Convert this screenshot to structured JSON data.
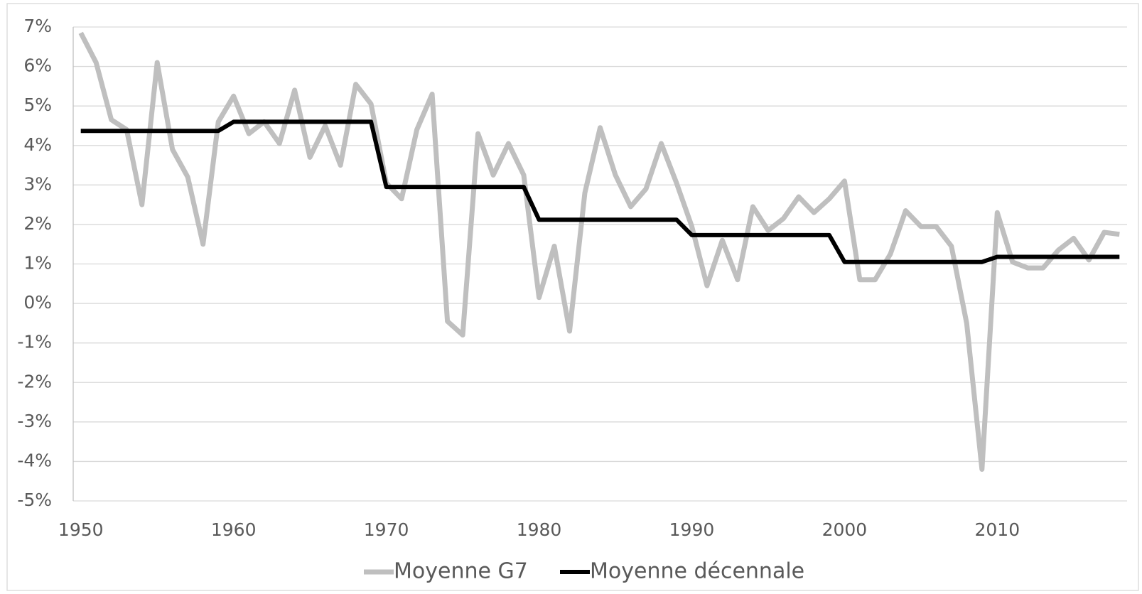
{
  "chart_data": {
    "type": "line",
    "x": [
      1950,
      1951,
      1952,
      1953,
      1954,
      1955,
      1956,
      1957,
      1958,
      1959,
      1960,
      1961,
      1962,
      1963,
      1964,
      1965,
      1966,
      1967,
      1968,
      1969,
      1970,
      1971,
      1972,
      1973,
      1974,
      1975,
      1976,
      1977,
      1978,
      1979,
      1980,
      1981,
      1982,
      1983,
      1984,
      1985,
      1986,
      1987,
      1988,
      1989,
      1990,
      1991,
      1992,
      1993,
      1994,
      1995,
      1996,
      1997,
      1998,
      1999,
      2000,
      2001,
      2002,
      2003,
      2004,
      2005,
      2006,
      2007,
      2008,
      2009,
      2010,
      2011,
      2012,
      2013,
      2014,
      2015,
      2016,
      2017,
      2018
    ],
    "series": [
      {
        "name": "Moyenne G7",
        "color": "#bfbfbf",
        "values": [
          6.85,
          6.1,
          4.65,
          4.4,
          2.5,
          6.1,
          3.9,
          3.2,
          1.5,
          4.6,
          5.25,
          4.3,
          4.6,
          4.05,
          5.4,
          3.7,
          4.5,
          3.5,
          5.55,
          5.05,
          3.05,
          2.65,
          4.4,
          5.3,
          -0.45,
          -0.8,
          4.3,
          3.25,
          4.05,
          3.25,
          0.15,
          1.45,
          -0.7,
          2.8,
          4.45,
          3.25,
          2.45,
          2.9,
          4.05,
          3.05,
          1.95,
          0.45,
          1.6,
          0.6,
          2.45,
          1.85,
          2.15,
          2.7,
          2.3,
          2.65,
          3.1,
          0.6,
          0.6,
          1.25,
          2.35,
          1.95,
          1.95,
          1.45,
          -0.5,
          -4.2,
          2.3,
          1.05,
          0.9,
          0.9,
          1.35,
          1.65,
          1.1,
          1.8,
          1.75
        ]
      },
      {
        "name": "Moyenne décennale",
        "color": "#000000",
        "values": [
          4.37,
          4.37,
          4.37,
          4.37,
          4.37,
          4.37,
          4.37,
          4.37,
          4.37,
          4.37,
          4.6,
          4.6,
          4.6,
          4.6,
          4.6,
          4.6,
          4.6,
          4.6,
          4.6,
          4.6,
          2.95,
          2.95,
          2.95,
          2.95,
          2.95,
          2.95,
          2.95,
          2.95,
          2.95,
          2.95,
          2.12,
          2.12,
          2.12,
          2.12,
          2.12,
          2.12,
          2.12,
          2.12,
          2.12,
          2.12,
          1.73,
          1.73,
          1.73,
          1.73,
          1.73,
          1.73,
          1.73,
          1.73,
          1.73,
          1.73,
          1.05,
          1.05,
          1.05,
          1.05,
          1.05,
          1.05,
          1.05,
          1.05,
          1.05,
          1.05,
          1.18,
          1.18,
          1.18,
          1.18,
          1.18,
          1.18,
          1.18,
          1.18,
          1.18
        ]
      }
    ],
    "xlim": [
      1949.5,
      2018.5
    ],
    "xticks": [
      1950,
      1960,
      1970,
      1980,
      1990,
      2000,
      2010
    ],
    "ylim": [
      -5,
      7
    ],
    "yticks": [
      {
        "value": -5,
        "label": "-5%"
      },
      {
        "value": -4,
        "label": "-4%"
      },
      {
        "value": -3,
        "label": "-3%"
      },
      {
        "value": -2,
        "label": "-2%"
      },
      {
        "value": -1,
        "label": "-1%"
      },
      {
        "value": 0,
        "label": "0%"
      },
      {
        "value": 1,
        "label": "1%"
      },
      {
        "value": 2,
        "label": "2%"
      },
      {
        "value": 3,
        "label": "3%"
      },
      {
        "value": 4,
        "label": "4%"
      },
      {
        "value": 5,
        "label": "5%"
      },
      {
        "value": 6,
        "label": "6%"
      },
      {
        "value": 7,
        "label": "7%"
      }
    ],
    "grid": true,
    "legend": "bottom"
  }
}
